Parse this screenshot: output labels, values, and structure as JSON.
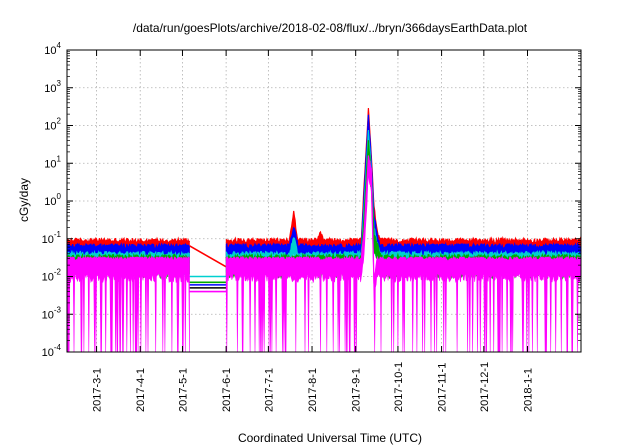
{
  "chart_data": {
    "type": "line",
    "title": "/data/run/goesPlots/archive/2018-02-08/flux/../bryn/366daysEarthData.plot",
    "xlabel": "Coordinated Universal Time (UTC)",
    "ylabel": "cGy/day",
    "yscale": "log",
    "ylim": [
      0.0001,
      10000
    ],
    "y_ticks": [
      {
        "base": "10",
        "exp": "-4",
        "value": 0.0001
      },
      {
        "base": "10",
        "exp": "-3",
        "value": 0.001
      },
      {
        "base": "10",
        "exp": "-2",
        "value": 0.01
      },
      {
        "base": "10",
        "exp": "-1",
        "value": 0.1
      },
      {
        "base": "10",
        "exp": "0",
        "value": 1
      },
      {
        "base": "10",
        "exp": "1",
        "value": 10
      },
      {
        "base": "10",
        "exp": "2",
        "value": 100
      },
      {
        "base": "10",
        "exp": "3",
        "value": 1000
      },
      {
        "base": "10",
        "exp": "4",
        "value": 10000
      }
    ],
    "xlim": [
      "2017-02-08",
      "2018-02-08"
    ],
    "x_ticks": [
      {
        "label": "2017-3-1",
        "date": "2017-03-01"
      },
      {
        "label": "2017-4-1",
        "date": "2017-04-01"
      },
      {
        "label": "2017-5-1",
        "date": "2017-05-01"
      },
      {
        "label": "2017-6-1",
        "date": "2017-06-01"
      },
      {
        "label": "2017-7-1",
        "date": "2017-07-01"
      },
      {
        "label": "2017-8-1",
        "date": "2017-08-01"
      },
      {
        "label": "2017-9-1",
        "date": "2017-09-01"
      },
      {
        "label": "2017-10-1",
        "date": "2017-10-01"
      },
      {
        "label": "2017-11-1",
        "date": "2017-11-01"
      },
      {
        "label": "2017-12-1",
        "date": "2017-12-01"
      },
      {
        "label": "2018-1-1",
        "date": "2018-01-01"
      }
    ],
    "grid": true,
    "legend": "none",
    "data_gap": [
      "2017-05-06",
      "2017-06-01"
    ],
    "series": [
      {
        "color": "#ff0000",
        "baseline": 0.07,
        "noise_max": 0.09,
        "points": [
          [
            "2017-02-08",
            0.07
          ],
          [
            "2017-07-16",
            0.07
          ],
          [
            "2017-07-19",
            0.4
          ],
          [
            "2017-07-22",
            0.07
          ],
          [
            "2017-08-05",
            0.07
          ],
          [
            "2017-08-07",
            0.11
          ],
          [
            "2017-08-09",
            0.07
          ],
          [
            "2017-09-05",
            0.07
          ],
          [
            "2017-09-07",
            2
          ],
          [
            "2017-09-10",
            200
          ],
          [
            "2017-09-12",
            15
          ],
          [
            "2017-09-14",
            0.5
          ],
          [
            "2017-09-17",
            0.1
          ],
          [
            "2017-09-19",
            0.07
          ],
          [
            "2018-02-08",
            0.07
          ]
        ]
      },
      {
        "color": "#0000ff",
        "baseline": 0.045,
        "noise_max": 0.065,
        "points": [
          [
            "2017-02-08",
            0.045
          ],
          [
            "2017-07-16",
            0.045
          ],
          [
            "2017-07-19",
            0.15
          ],
          [
            "2017-07-22",
            0.045
          ],
          [
            "2017-09-05",
            0.045
          ],
          [
            "2017-09-07",
            1
          ],
          [
            "2017-09-10",
            120
          ],
          [
            "2017-09-12",
            10
          ],
          [
            "2017-09-14",
            0.3
          ],
          [
            "2017-09-17",
            0.06
          ],
          [
            "2017-09-19",
            0.045
          ],
          [
            "2018-02-08",
            0.045
          ]
        ]
      },
      {
        "color": "#00d0d0",
        "baseline": 0.03,
        "noise_max": 0.04,
        "points": [
          [
            "2017-02-08",
            0.03
          ],
          [
            "2017-07-16",
            0.03
          ],
          [
            "2017-07-19",
            0.08
          ],
          [
            "2017-07-22",
            0.03
          ],
          [
            "2017-09-05",
            0.03
          ],
          [
            "2017-09-07",
            0.5
          ],
          [
            "2017-09-10",
            60
          ],
          [
            "2017-09-12",
            6
          ],
          [
            "2017-09-14",
            0.15
          ],
          [
            "2017-09-17",
            0.04
          ],
          [
            "2017-09-19",
            0.03
          ],
          [
            "2018-02-08",
            0.03
          ]
        ]
      },
      {
        "color": "#00aa00",
        "baseline": 0.025,
        "noise_max": 0.033,
        "points": [
          [
            "2017-02-08",
            0.025
          ],
          [
            "2017-09-05",
            0.025
          ],
          [
            "2017-09-07",
            0.3
          ],
          [
            "2017-09-10",
            30
          ],
          [
            "2017-09-12",
            4
          ],
          [
            "2017-09-14",
            0.1
          ],
          [
            "2017-09-19",
            0.025
          ],
          [
            "2018-02-08",
            0.025
          ]
        ]
      },
      {
        "color": "#ff00ff",
        "baseline": 0.02,
        "noise_max": 0.03,
        "dip_min": 0.0001,
        "points": [
          [
            "2017-02-08",
            0.02
          ],
          [
            "2017-09-05",
            0.02
          ],
          [
            "2017-09-07",
            0.1
          ],
          [
            "2017-09-10",
            10
          ],
          [
            "2017-09-12",
            5
          ],
          [
            "2017-09-14",
            0.005
          ],
          [
            "2017-09-16",
            0.02
          ],
          [
            "2018-02-08",
            0.02
          ]
        ]
      }
    ],
    "gap_lines": [
      {
        "color": "#ff0000",
        "from": 0.065,
        "to": 0.018
      },
      {
        "color": "#00d0d0",
        "from": 0.01,
        "to": 0.01
      },
      {
        "color": "#00aa00",
        "from": 0.007,
        "to": 0.007
      },
      {
        "color": "#0000ff",
        "from": 0.006,
        "to": 0.006
      },
      {
        "color": "#000000",
        "from": 0.005,
        "to": 0.005
      },
      {
        "color": "#ff00ff",
        "from": 0.004,
        "to": 0.004
      }
    ]
  }
}
